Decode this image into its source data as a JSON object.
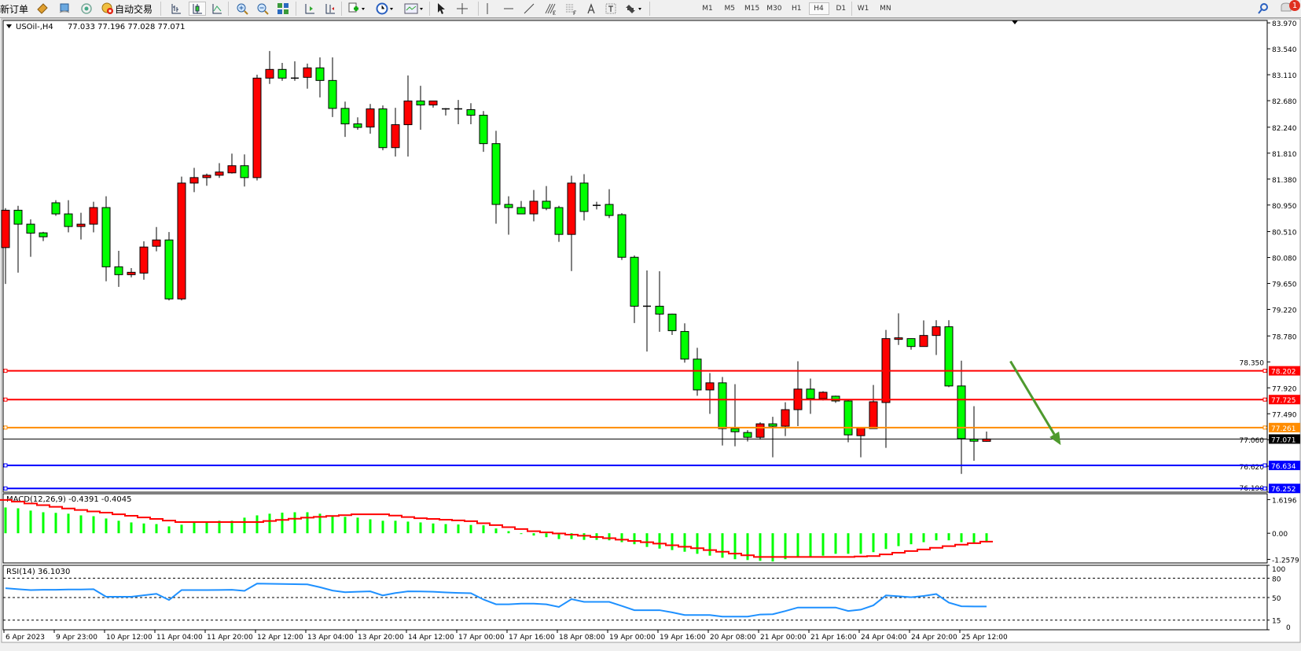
{
  "toolbar": {
    "new_order_label": "新订单",
    "auto_trading_label": "自动交易",
    "periods": [
      "M1",
      "M5",
      "M15",
      "M30",
      "H1",
      "H4",
      "D1",
      "W1",
      "MN"
    ],
    "active_period": "H4",
    "notification_count": "1",
    "icons": [
      "profiles-icon",
      "market-watch-icon",
      "signals-icon",
      "auto-trading-icon",
      "bar-chart-icon",
      "candlestick-icon",
      "line-chart-icon",
      "zoom-in-icon",
      "zoom-out-icon",
      "tile-windows-icon",
      "chart-shift-icon",
      "autoscroll-icon",
      "indicators-icon",
      "periods-clock-icon",
      "templates-icon",
      "cursor-icon",
      "crosshair-icon",
      "vertical-line-icon",
      "horizontal-line-icon",
      "trendline-icon",
      "fibonacci-expansion-icon",
      "fibonacci-fan-icon",
      "text-icon",
      "text-label-icon",
      "arrows-icon",
      "search-icon",
      "notification-icon"
    ]
  },
  "chart_header": {
    "symbol_timeframe": "USOil-,H4",
    "ohlc": "77.033 77.196 77.028 77.071"
  },
  "colors": {
    "bull_candle": "#ff0000",
    "bear_candle": "#00ff00",
    "macd_histogram": "#00ff00",
    "macd_signal": "#ff0000",
    "rsi_line": "#1e90ff",
    "arrow": "#4e9a2e"
  },
  "chart_data": [
    {
      "type": "candlestick",
      "symbol": "USOil-",
      "timeframe": "H4",
      "ylim": [
        76.19,
        84.01
      ],
      "y_ticks": [
        "83.970",
        "83.540",
        "83.110",
        "82.680",
        "82.240",
        "81.810",
        "81.380",
        "80.950",
        "80.510",
        "80.080",
        "79.650",
        "79.220",
        "78.780",
        "78.350",
        "77.920",
        "77.490",
        "77.060",
        "76.620",
        "76.190"
      ],
      "x_tick_labels": [
        "6 Apr 2023",
        "9 Apr 23:00",
        "10 Apr 12:00",
        "11 Apr 04:00",
        "11 Apr 20:00",
        "12 Apr 12:00",
        "13 Apr 04:00",
        "13 Apr 20:00",
        "14 Apr 12:00",
        "17 Apr 00:00",
        "17 Apr 16:00",
        "18 Apr 08:00",
        "19 Apr 00:00",
        "19 Apr 16:00",
        "20 Apr 08:00",
        "21 Apr 00:00",
        "21 Apr 16:00",
        "24 Apr 04:00",
        "24 Apr 20:00",
        "25 Apr 12:00"
      ],
      "ohlc": [
        [
          80.245,
          80.899,
          79.643,
          80.864
        ],
        [
          80.864,
          80.938,
          79.83,
          80.633
        ],
        [
          80.633,
          80.712,
          80.092,
          80.484
        ],
        [
          80.489,
          80.506,
          80.353,
          80.424
        ],
        [
          80.987,
          81.03,
          80.772,
          80.803
        ],
        [
          80.803,
          81.03,
          80.497,
          80.594
        ],
        [
          80.594,
          80.821,
          80.379,
          80.633
        ],
        [
          80.633,
          81.004,
          80.497,
          80.908
        ],
        [
          80.908,
          81.095,
          79.686,
          79.926
        ],
        [
          79.926,
          80.192,
          79.594,
          79.796
        ],
        [
          79.796,
          79.904,
          79.751,
          79.835
        ],
        [
          79.822,
          80.349,
          79.712,
          80.254
        ],
        [
          80.267,
          80.585,
          80.183,
          80.371
        ],
        [
          80.371,
          80.502,
          79.368,
          79.394
        ],
        [
          79.394,
          81.422,
          79.368,
          81.314
        ],
        [
          81.314,
          81.566,
          81.164,
          81.405
        ],
        [
          81.405,
          81.471,
          81.269,
          81.444
        ],
        [
          81.444,
          81.645,
          81.4,
          81.497
        ],
        [
          81.484,
          81.802,
          81.471,
          81.602
        ],
        [
          81.602,
          81.789,
          81.256,
          81.405
        ],
        [
          81.405,
          83.11,
          81.357,
          83.054
        ],
        [
          83.054,
          83.503,
          82.957,
          83.198
        ],
        [
          83.198,
          83.307,
          83.01,
          83.054
        ],
        [
          83.054,
          83.333,
          83.01,
          83.05
        ],
        [
          83.067,
          83.294,
          82.879,
          83.224
        ],
        [
          83.224,
          83.398,
          82.735,
          83.015
        ],
        [
          83.015,
          83.398,
          82.408,
          82.552
        ],
        [
          82.552,
          82.665,
          82.08,
          82.295
        ],
        [
          82.295,
          82.404,
          82.198,
          82.237
        ],
        [
          82.243,
          82.626,
          82.133,
          82.544
        ],
        [
          82.544,
          82.6,
          81.858,
          81.902
        ],
        [
          81.902,
          82.561,
          81.753,
          82.282
        ],
        [
          82.282,
          83.097,
          81.753,
          82.675
        ],
        [
          82.675,
          82.927,
          82.198,
          82.609
        ],
        [
          82.609,
          82.678,
          82.565,
          82.675
        ],
        [
          82.544,
          82.557,
          82.434,
          82.531
        ],
        [
          82.544,
          82.692,
          82.29,
          82.54
        ],
        [
          82.531,
          82.639,
          82.29,
          82.439
        ],
        [
          82.439,
          82.508,
          81.832,
          81.968
        ],
        [
          81.968,
          82.181,
          80.641,
          80.96
        ],
        [
          80.96,
          81.095,
          80.458,
          80.908
        ],
        [
          80.908,
          81.017,
          80.8,
          80.803
        ],
        [
          80.803,
          81.2,
          80.68,
          81.013
        ],
        [
          81.013,
          81.265,
          80.864,
          80.895
        ],
        [
          80.908,
          80.938,
          80.34,
          80.463
        ],
        [
          80.463,
          81.436,
          79.856,
          81.314
        ],
        [
          81.314,
          81.462,
          80.694,
          80.843
        ],
        [
          80.945,
          81.004,
          80.877,
          80.94
        ],
        [
          80.96,
          81.213,
          80.733,
          80.777
        ],
        [
          80.79,
          80.816,
          80.039,
          80.084
        ],
        [
          80.084,
          80.114,
          78.993,
          79.273
        ],
        [
          79.273,
          79.865,
          78.521,
          79.27
        ],
        [
          79.273,
          79.852,
          78.849,
          79.142
        ],
        [
          79.142,
          79.15,
          78.796,
          78.867
        ],
        [
          78.854,
          78.989,
          78.338,
          78.396
        ],
        [
          78.396,
          78.583,
          77.789,
          77.885
        ],
        [
          77.885,
          78.164,
          77.488,
          78.003
        ],
        [
          78.003,
          78.099,
          76.964,
          77.244
        ],
        [
          77.244,
          77.981,
          76.951,
          77.192
        ],
        [
          77.179,
          77.218,
          77.03,
          77.1
        ],
        [
          77.1,
          77.349,
          77.061,
          77.323
        ],
        [
          77.323,
          77.44,
          76.768,
          77.284
        ],
        [
          77.284,
          77.68,
          77.121,
          77.558
        ],
        [
          77.558,
          78.36,
          77.284,
          77.899
        ],
        [
          77.899,
          78.073,
          77.488,
          77.741
        ],
        [
          77.741,
          77.863,
          77.71,
          77.846
        ],
        [
          77.781,
          77.79,
          77.671,
          77.702
        ],
        [
          77.702,
          77.723,
          77.017,
          77.14
        ],
        [
          77.127,
          77.265,
          76.768,
          77.265
        ],
        [
          77.244,
          77.968,
          77.24,
          77.689
        ],
        [
          77.676,
          78.88,
          76.925,
          78.736
        ],
        [
          78.723,
          79.155,
          78.631,
          78.749
        ],
        [
          78.736,
          78.74,
          78.553,
          78.605
        ],
        [
          78.605,
          79.037,
          78.605,
          78.788
        ],
        [
          78.788,
          79.041,
          78.465,
          78.932
        ],
        [
          78.932,
          79.041,
          77.932,
          77.951
        ],
        [
          77.951,
          78.37,
          76.493,
          77.078
        ],
        [
          77.069,
          77.615,
          76.712,
          77.035
        ],
        [
          77.033,
          77.196,
          77.028,
          77.071
        ]
      ],
      "horizontal_lines": [
        {
          "price": "78.202",
          "color": "#ff0000"
        },
        {
          "price": "77.725",
          "color": "#ff0000"
        },
        {
          "price": "77.261",
          "color": "#ff8c00"
        },
        {
          "price": "77.071",
          "color": "#000000",
          "bid": true
        },
        {
          "price": "76.634",
          "color": "#0000ff"
        },
        {
          "price": "76.252",
          "color": "#0000ff"
        }
      ],
      "arrow": {
        "from": {
          "bar": 79.9,
          "price": 78.36
        },
        "to": {
          "bar": 83.9,
          "price": 76.97
        },
        "color": "#4e9a2e"
      }
    },
    {
      "type": "bar+line",
      "label": "MACD(12,26,9) -0.4391 -0.4045",
      "ylim": [
        -1.43,
        1.9
      ],
      "y_ticks": [
        "1.6196",
        "0.00",
        "-1.2579"
      ],
      "histogram": [
        1.24,
        1.2,
        1.09,
        1.01,
        0.98,
        0.94,
        0.86,
        0.82,
        0.71,
        0.6,
        0.52,
        0.47,
        0.44,
        0.33,
        0.41,
        0.52,
        0.52,
        0.6,
        0.6,
        0.75,
        0.86,
        0.94,
        0.99,
        1.01,
        1.01,
        0.94,
        0.86,
        0.79,
        0.75,
        0.67,
        0.6,
        0.6,
        0.56,
        0.52,
        0.47,
        0.44,
        0.42,
        0.4,
        0.38,
        0.23,
        0.1,
        -0.02,
        -0.11,
        -0.19,
        -0.28,
        -0.28,
        -0.32,
        -0.32,
        -0.34,
        -0.43,
        -0.53,
        -0.66,
        -0.74,
        -0.81,
        -0.89,
        -0.99,
        -1.08,
        -1.18,
        -1.25,
        -1.29,
        -1.33,
        -1.36,
        -1.25,
        -1.17,
        -1.17,
        -1.08,
        -0.99,
        -0.99,
        -0.99,
        -0.91,
        -0.76,
        -0.62,
        -0.53,
        -0.43,
        -0.34,
        -0.34,
        -0.43,
        -0.47,
        -0.4391
      ],
      "signal": [
        1.6,
        1.52,
        1.43,
        1.35,
        1.27,
        1.19,
        1.12,
        1.05,
        0.99,
        0.91,
        0.84,
        0.76,
        0.69,
        0.61,
        0.54,
        0.54,
        0.54,
        0.54,
        0.54,
        0.54,
        0.54,
        0.59,
        0.64,
        0.7,
        0.75,
        0.79,
        0.83,
        0.87,
        0.91,
        0.91,
        0.91,
        0.85,
        0.78,
        0.72,
        0.69,
        0.65,
        0.62,
        0.58,
        0.48,
        0.39,
        0.29,
        0.2,
        0.1,
        0.04,
        -0.01,
        -0.07,
        -0.12,
        -0.18,
        -0.24,
        -0.31,
        -0.37,
        -0.43,
        -0.5,
        -0.58,
        -0.65,
        -0.72,
        -0.81,
        -0.89,
        -0.98,
        -1.06,
        -1.14,
        -1.14,
        -1.14,
        -1.14,
        -1.14,
        -1.14,
        -1.14,
        -1.14,
        -1.12,
        -1.1,
        -1.02,
        -0.94,
        -0.86,
        -0.78,
        -0.7,
        -0.62,
        -0.55,
        -0.48,
        -0.4045
      ]
    },
    {
      "type": "line",
      "label": "RSI(14) 36.1030",
      "ylim": [
        0,
        100
      ],
      "y_ticks": [
        "100",
        "80",
        "50",
        "15",
        "0"
      ],
      "levels": [
        80,
        50,
        15
      ],
      "values": [
        64.5,
        63,
        61.6,
        62,
        62,
        62.5,
        62.5,
        62.9,
        51.2,
        51.2,
        51.2,
        53.5,
        55.8,
        46.2,
        61.6,
        61.6,
        61.6,
        61.8,
        62,
        60.4,
        71.6,
        71.3,
        71,
        70.7,
        70.4,
        66,
        60.8,
        58.3,
        59,
        59.6,
        53.3,
        57,
        59.6,
        59.5,
        59,
        58,
        57.2,
        56.7,
        47,
        39.5,
        39.5,
        40.5,
        40.5,
        39.5,
        35.4,
        47.5,
        43.3,
        43.3,
        43.3,
        37,
        30.4,
        30.4,
        30.4,
        27,
        22.9,
        22.9,
        22.9,
        20.4,
        20.4,
        20.4,
        23.7,
        24.1,
        29,
        34.5,
        34.5,
        34.5,
        34.5,
        29.1,
        31.2,
        37.9,
        53.3,
        52,
        50.4,
        52.5,
        55.4,
        42.1,
        36.5,
        36.1,
        36.103
      ]
    }
  ]
}
